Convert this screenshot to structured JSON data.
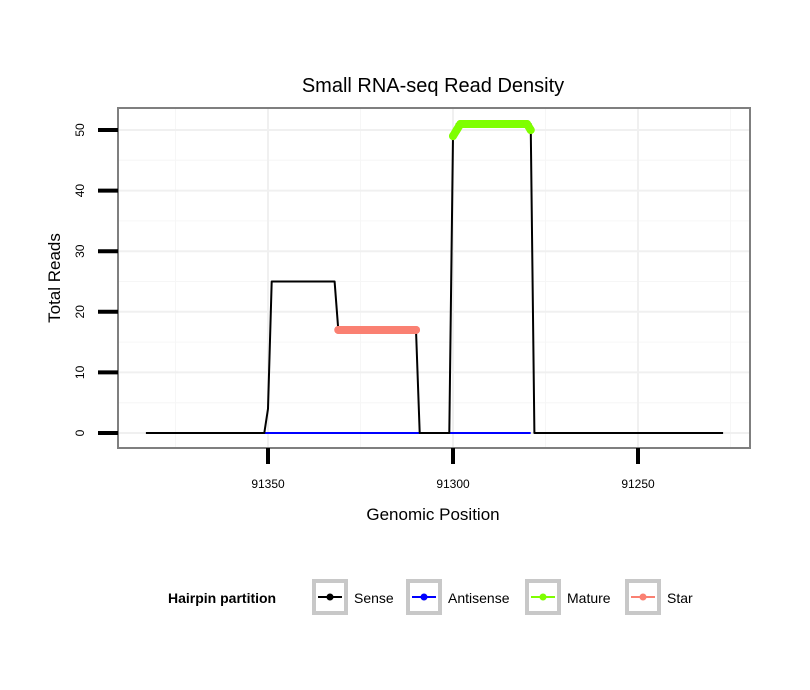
{
  "chart_data": {
    "type": "line",
    "title": "Small RNA-seq Read Density",
    "xlabel": "Genomic Position",
    "ylabel": "Total Reads",
    "x_reversed": true,
    "xlim": [
      91391,
      91223
    ],
    "ylim": [
      -2.5,
      52.5
    ],
    "x_ticks": [
      91350,
      91300,
      91250
    ],
    "y_ticks": [
      0,
      10,
      20,
      30,
      40,
      50
    ],
    "grid": true,
    "legend": {
      "title": "Hairpin partition",
      "position": "bottom",
      "entries": [
        {
          "label": "Sense",
          "color": "#000000"
        },
        {
          "label": "Antisense",
          "color": "#0000ff"
        },
        {
          "label": "Mature",
          "color": "#7fff00"
        },
        {
          "label": "Star",
          "color": "#fa8072"
        }
      ]
    },
    "series": [
      {
        "name": "Sense",
        "color": "#000000",
        "x": [
          91383,
          91351,
          91350,
          91349,
          91332,
          91331,
          91310,
          91309,
          91301,
          91300,
          91299,
          91279,
          91278,
          91227
        ],
        "y": [
          0,
          0,
          4,
          25,
          25,
          17,
          17,
          0,
          0,
          49,
          51,
          51,
          0,
          0
        ]
      },
      {
        "name": "Antisense",
        "color": "#0000ff",
        "x": [
          91351,
          91279
        ],
        "y": [
          0,
          0
        ]
      },
      {
        "name": "Mature",
        "color": "#7fff00",
        "x": [
          91300,
          91299,
          91298,
          91297,
          91296,
          91295,
          91294,
          91293,
          91292,
          91291,
          91290,
          91289,
          91288,
          91287,
          91286,
          91285,
          91284,
          91283,
          91282,
          91281,
          91280,
          91279
        ],
        "y": [
          49,
          50,
          51,
          51,
          51,
          51,
          51,
          51,
          51,
          51,
          51,
          51,
          51,
          51,
          51,
          51,
          51,
          51,
          51,
          51,
          51,
          50
        ]
      },
      {
        "name": "Star",
        "color": "#fa8072",
        "x": [
          91331,
          91330,
          91329,
          91328,
          91327,
          91326,
          91325,
          91324,
          91323,
          91322,
          91321,
          91320,
          91319,
          91318,
          91317,
          91316,
          91315,
          91314,
          91313,
          91312,
          91311,
          91310
        ],
        "y": [
          17,
          17,
          17,
          17,
          17,
          17,
          17,
          17,
          17,
          17,
          17,
          17,
          17,
          17,
          17,
          17,
          17,
          17,
          17,
          17,
          17,
          17
        ]
      }
    ]
  }
}
